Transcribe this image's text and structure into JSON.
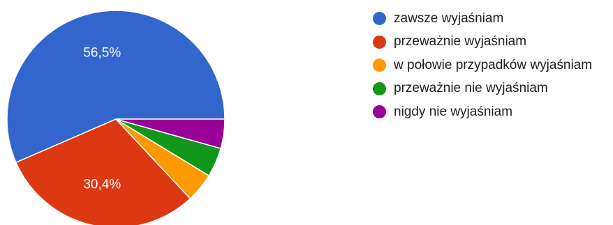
{
  "chart_data": {
    "type": "pie",
    "categories": [
      "zawsze wyjaśniam",
      "przeważnie wyjaśniam",
      "w połowie przypadków wyjaśniam",
      "przeważnie nie wyjaśniam",
      "nigdy nie wyjaśniam"
    ],
    "values": [
      56.5,
      30.4,
      4.35,
      4.35,
      4.35
    ],
    "data_labels": [
      "56,5%",
      "30,4%",
      "",
      "",
      ""
    ],
    "colors": [
      "#3366cc",
      "#dc3912",
      "#ff9900",
      "#109618",
      "#990099"
    ],
    "legend_position": "right"
  }
}
